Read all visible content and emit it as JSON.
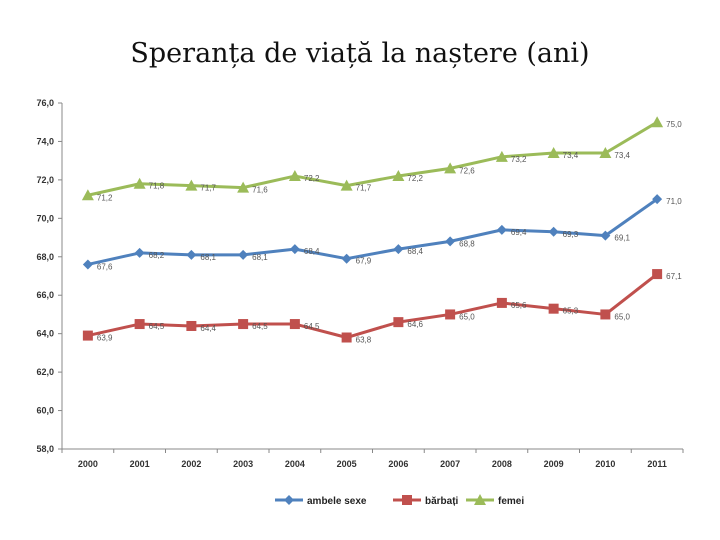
{
  "chart_data": {
    "type": "line",
    "title": "Speranța de viață la naștere (ani)",
    "xlabel": "",
    "ylabel": "",
    "categories": [
      "2000",
      "2001",
      "2002",
      "2003",
      "2004",
      "2005",
      "2006",
      "2007",
      "2008",
      "2009",
      "2010",
      "2011"
    ],
    "ylim": [
      58.0,
      76.0
    ],
    "yticks": [
      "58,0",
      "60,0",
      "62,0",
      "64,0",
      "66,0",
      "68,0",
      "70,0",
      "72,0",
      "74,0",
      "76,0"
    ],
    "grid": false,
    "legend_position": "bottom",
    "series": [
      {
        "name": "ambele sexe",
        "color": "#4f81bd",
        "marker": "diamond",
        "values": [
          67.6,
          68.2,
          68.1,
          68.1,
          68.4,
          67.9,
          68.4,
          68.8,
          69.4,
          69.3,
          69.1,
          71.0
        ],
        "labels": [
          "67,6",
          "68,2",
          "68,1",
          "68,1",
          "68,4",
          "67,9",
          "68,4",
          "68,8",
          "69,4",
          "69,3",
          "69,1",
          "71,0"
        ]
      },
      {
        "name": "bărbați",
        "color": "#c0504d",
        "marker": "square",
        "values": [
          63.9,
          64.5,
          64.4,
          64.5,
          64.5,
          63.8,
          64.6,
          65.0,
          65.6,
          65.3,
          65.0,
          67.1
        ],
        "labels": [
          "63,9",
          "64,5",
          "64,4",
          "64,5",
          "64,5",
          "63,8",
          "64,6",
          "65,0",
          "65,6",
          "65,3",
          "65,0",
          "67,1"
        ]
      },
      {
        "name": "femei",
        "color": "#9bbb59",
        "marker": "triangle",
        "values": [
          71.2,
          71.8,
          71.7,
          71.6,
          72.2,
          71.7,
          72.2,
          72.6,
          73.2,
          73.4,
          73.4,
          75.0
        ],
        "labels": [
          "71,2",
          "71,8",
          "71,7",
          "71,6",
          "72,2",
          "71,7",
          "72,2",
          "72,6",
          "73,2",
          "73,4",
          "73,4",
          "75,0"
        ]
      }
    ]
  }
}
